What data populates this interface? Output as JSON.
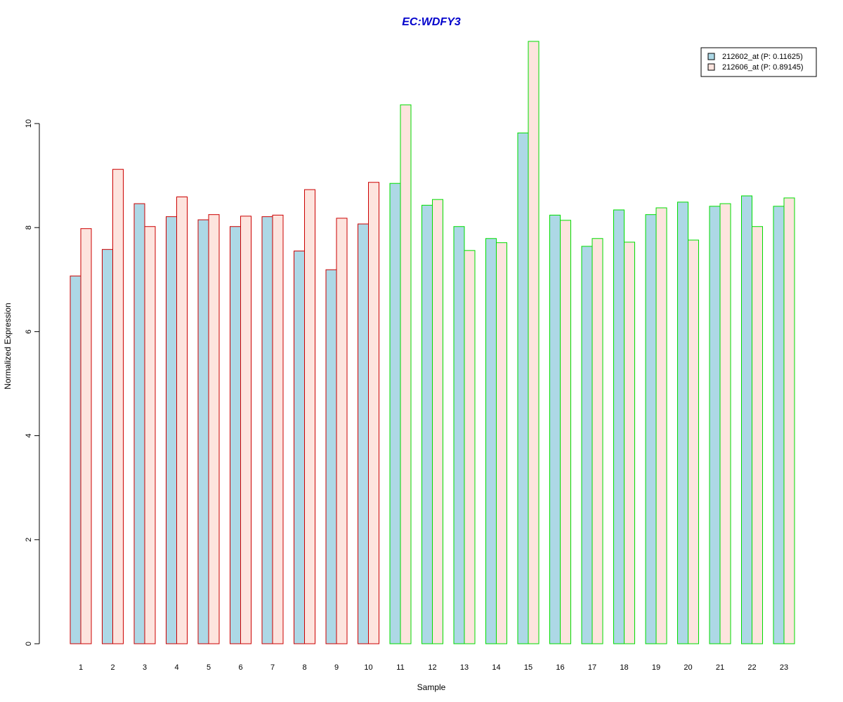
{
  "chart_data": {
    "type": "bar",
    "title": "EC:WDFY3",
    "title_color": "#0000cc",
    "xlabel": "Sample",
    "ylabel": "Normalized Expression",
    "ylim": [
      0,
      11.6
    ],
    "yticks": [
      0,
      2,
      4,
      6,
      8,
      10
    ],
    "grid": false,
    "legend_position": "top-right",
    "categories": [
      "1",
      "2",
      "3",
      "4",
      "5",
      "6",
      "7",
      "8",
      "9",
      "10",
      "11",
      "12",
      "13",
      "14",
      "15",
      "16",
      "17",
      "18",
      "19",
      "20",
      "21",
      "22",
      "23"
    ],
    "group_border_colors": [
      "#cc0000",
      "#cc0000",
      "#cc0000",
      "#cc0000",
      "#cc0000",
      "#cc0000",
      "#cc0000",
      "#cc0000",
      "#cc0000",
      "#cc0000",
      "#00dd00",
      "#00dd00",
      "#00dd00",
      "#00dd00",
      "#00dd00",
      "#00dd00",
      "#00dd00",
      "#00dd00",
      "#00dd00",
      "#00dd00",
      "#00dd00",
      "#00dd00",
      "#00dd00"
    ],
    "series": [
      {
        "name": "212602_at (P: 0.11625)",
        "fill": "#add8e6",
        "values": [
          7.07,
          7.58,
          8.46,
          8.21,
          8.15,
          8.02,
          8.21,
          7.55,
          7.19,
          8.07,
          8.85,
          8.43,
          8.02,
          7.79,
          9.82,
          8.24,
          7.64,
          8.34,
          8.25,
          8.49,
          8.41,
          8.61,
          8.41
        ]
      },
      {
        "name": "212606_at (P: 0.89145)",
        "fill": "#fde4de",
        "values": [
          7.98,
          9.12,
          8.02,
          8.59,
          8.25,
          8.22,
          8.24,
          8.73,
          8.18,
          8.87,
          10.36,
          8.54,
          7.56,
          7.71,
          11.58,
          8.14,
          7.79,
          7.72,
          8.38,
          7.76,
          8.46,
          8.02,
          8.57
        ]
      }
    ]
  }
}
